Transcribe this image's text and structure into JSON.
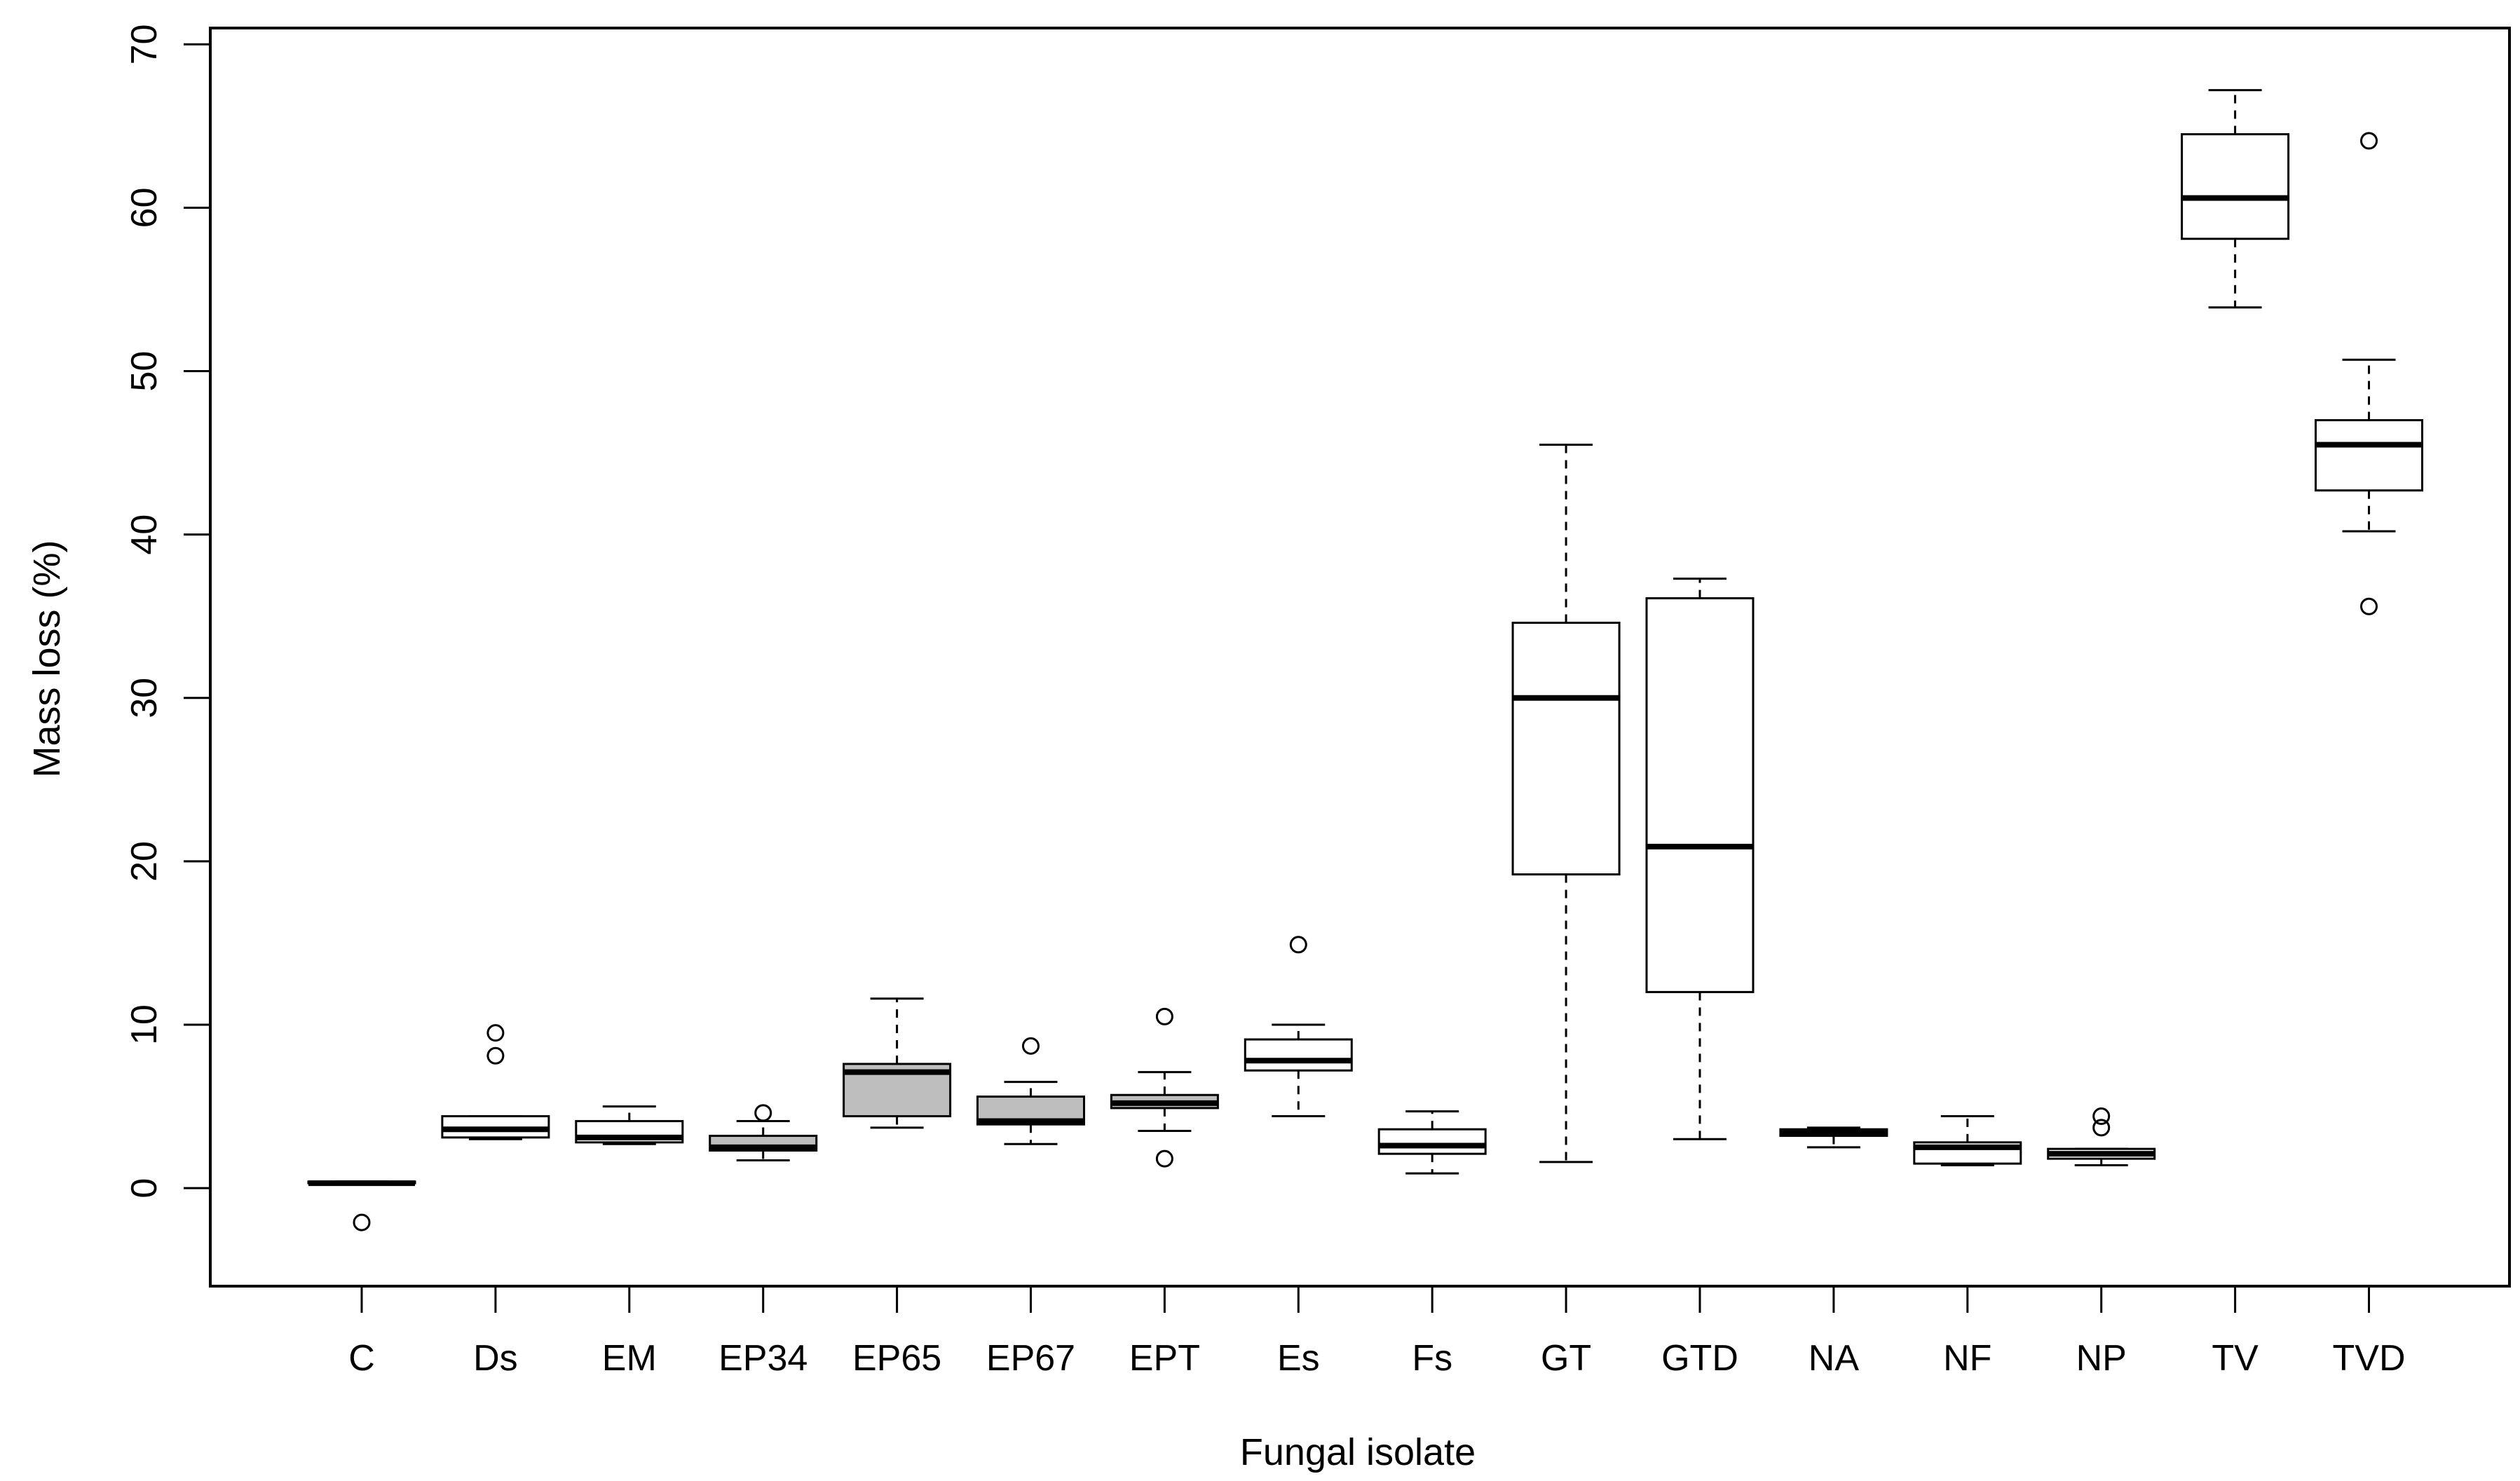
{
  "chart_data": {
    "type": "boxplot",
    "title": "",
    "xlabel": "Fungal isolate",
    "ylabel": "Mass loss (%)",
    "ylim": [
      -6,
      71
    ],
    "yticks": [
      0,
      10,
      20,
      30,
      40,
      50,
      60,
      70
    ],
    "colors": {
      "white_box": "#ffffff",
      "gray_box": "#bebebe",
      "stroke": "#000000"
    },
    "categories": [
      "C",
      "Ds",
      "EM",
      "EP34",
      "EP65",
      "EP67",
      "EPT",
      "Es",
      "Fs",
      "GT",
      "GTD",
      "NA",
      "NF",
      "NP",
      "TV",
      "TVD"
    ],
    "boxes": [
      {
        "label": "C",
        "fill": "white",
        "whisker_low": 0.3,
        "q1": 0.3,
        "median": 0.3,
        "q3": 0.4,
        "whisker_high": 0.4,
        "outliers": [
          -2.1
        ]
      },
      {
        "label": "Ds",
        "fill": "white",
        "whisker_low": 3.0,
        "q1": 3.1,
        "median": 3.6,
        "q3": 4.4,
        "whisker_high": 4.4,
        "outliers": [
          8.1,
          9.5
        ]
      },
      {
        "label": "EM",
        "fill": "white",
        "whisker_low": 2.7,
        "q1": 2.8,
        "median": 3.1,
        "q3": 4.1,
        "whisker_high": 5.0,
        "outliers": []
      },
      {
        "label": "EP34",
        "fill": "gray",
        "whisker_low": 1.7,
        "q1": 2.3,
        "median": 2.5,
        "q3": 3.2,
        "whisker_high": 4.1,
        "outliers": [
          4.6
        ]
      },
      {
        "label": "EP65",
        "fill": "gray",
        "whisker_low": 3.7,
        "q1": 4.4,
        "median": 7.1,
        "q3": 7.6,
        "whisker_high": 11.6,
        "outliers": []
      },
      {
        "label": "EP67",
        "fill": "gray",
        "whisker_low": 2.7,
        "q1": 3.9,
        "median": 4.1,
        "q3": 5.6,
        "whisker_high": 6.5,
        "outliers": [
          8.7
        ]
      },
      {
        "label": "EPT",
        "fill": "gray",
        "whisker_low": 3.5,
        "q1": 4.9,
        "median": 5.2,
        "q3": 5.7,
        "whisker_high": 7.1,
        "outliers": [
          1.8,
          10.5
        ]
      },
      {
        "label": "Es",
        "fill": "white",
        "whisker_low": 4.4,
        "q1": 7.2,
        "median": 7.8,
        "q3": 9.1,
        "whisker_high": 10.0,
        "outliers": [
          14.9
        ]
      },
      {
        "label": "Fs",
        "fill": "white",
        "whisker_low": 0.9,
        "q1": 2.1,
        "median": 2.6,
        "q3": 3.6,
        "whisker_high": 4.7,
        "outliers": []
      },
      {
        "label": "GT",
        "fill": "white",
        "whisker_low": 1.6,
        "q1": 19.2,
        "median": 30.0,
        "q3": 34.6,
        "whisker_high": 45.5,
        "outliers": []
      },
      {
        "label": "GTD",
        "fill": "white",
        "whisker_low": 3.0,
        "q1": 12.0,
        "median": 20.9,
        "q3": 36.1,
        "whisker_high": 37.3,
        "outliers": []
      },
      {
        "label": "NA",
        "fill": "white",
        "whisker_low": 2.5,
        "q1": 3.2,
        "median": 3.4,
        "q3": 3.6,
        "whisker_high": 3.7,
        "outliers": []
      },
      {
        "label": "NF",
        "fill": "white",
        "whisker_low": 1.4,
        "q1": 1.5,
        "median": 2.5,
        "q3": 2.8,
        "whisker_high": 4.4,
        "outliers": []
      },
      {
        "label": "NP",
        "fill": "white",
        "whisker_low": 1.4,
        "q1": 1.8,
        "median": 2.1,
        "q3": 2.4,
        "whisker_high": 2.4,
        "outliers": [
          3.7,
          4.4
        ]
      },
      {
        "label": "TV",
        "fill": "white",
        "whisker_low": 53.9,
        "q1": 58.1,
        "median": 60.6,
        "q3": 64.5,
        "whisker_high": 67.2,
        "outliers": []
      },
      {
        "label": "TVD",
        "fill": "white",
        "whisker_low": 40.2,
        "q1": 42.7,
        "median": 45.5,
        "q3": 47.0,
        "whisker_high": 50.7,
        "outliers": [
          35.6,
          64.1
        ]
      }
    ]
  }
}
